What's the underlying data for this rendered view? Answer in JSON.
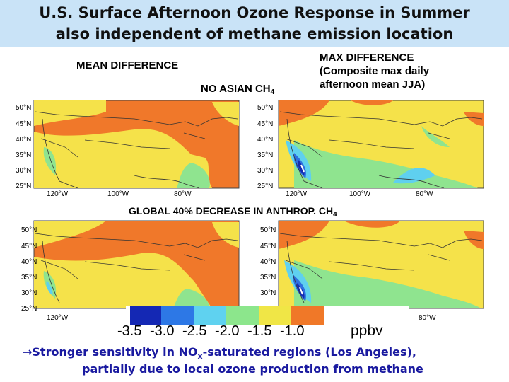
{
  "slide": {
    "title_line1": "U.S. Surface Afternoon Ozone Response in Summer",
    "title_line2": "also independent of methane emission location"
  },
  "labels": {
    "mean_difference": "MEAN DIFFERENCE",
    "no_asian_ch4": "NO ASIAN CH",
    "no_asian_sub": "4",
    "max_difference_1": "MAX DIFFERENCE",
    "max_difference_2": "(Composite max daily",
    "max_difference_3": "afternoon mean JJA)",
    "global_decrease": "GLOBAL 40% DECREASE IN ANTHROP. CH",
    "global_sub": "4"
  },
  "map_ticks": {
    "lat": [
      "50°N",
      "45°N",
      "40°N",
      "35°N",
      "30°N",
      "25°N"
    ],
    "lon": [
      "120°W",
      "100°W",
      "80°W"
    ]
  },
  "colorbar": {
    "values": [
      "-3.5",
      "-3.0",
      "-2.5",
      "-2.0",
      "-1.5",
      "-1.0"
    ],
    "unit": "ppbv",
    "colors": [
      "#1428b4",
      "#2d78e6",
      "#5fd2f0",
      "#8ce68c",
      "#f0e646",
      "#f07828"
    ]
  },
  "colors": {
    "header_bg": "#c9e3f7",
    "orange": "#f0782a",
    "yellow": "#f5e24a",
    "green": "#8fe48f",
    "cyan": "#5fd0ef",
    "blue": "#2d6fe0",
    "navy": "#142ab0"
  },
  "bottom": {
    "arrow": "→",
    "line1_prefix": "Stronger sensitivity in NO",
    "line1_sub": "x",
    "line1_suffix": "-saturated regions (Los Angeles),",
    "line2": "partially due to local ozone production from methane"
  }
}
